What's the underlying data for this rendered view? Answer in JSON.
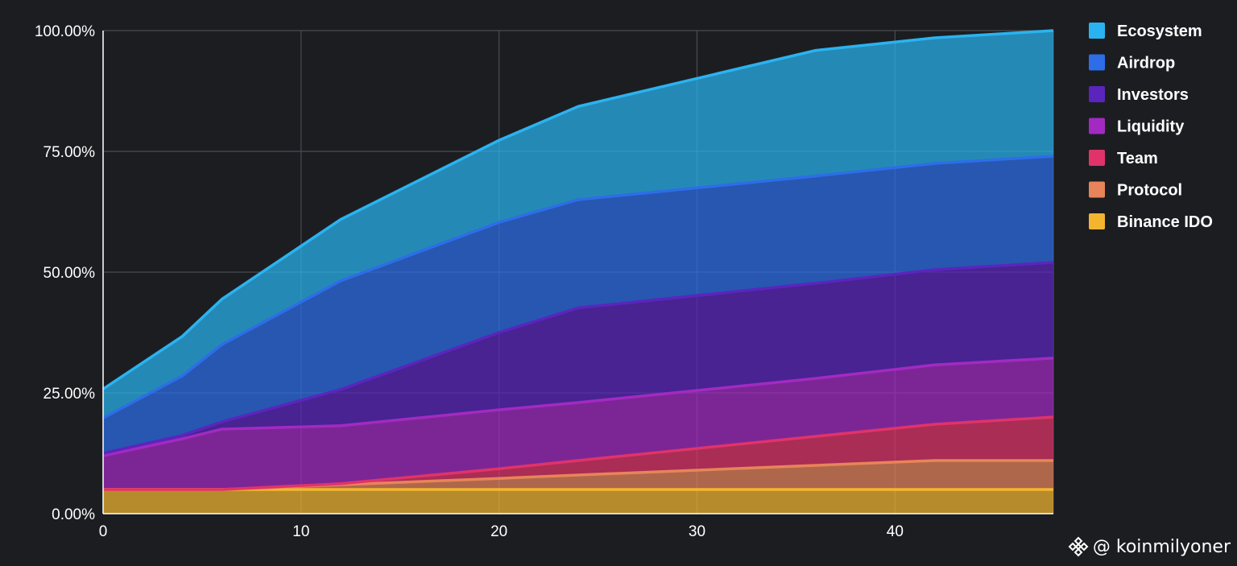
{
  "chart_data": {
    "type": "area",
    "stacked": true,
    "x": [
      0,
      4,
      6,
      12,
      20,
      24,
      36,
      42,
      48
    ],
    "xlim": [
      0,
      48
    ],
    "ylim": [
      0,
      100
    ],
    "xticks": [
      "0",
      "10",
      "20",
      "30",
      "40"
    ],
    "xtick_values": [
      0,
      10,
      20,
      30,
      40
    ],
    "yticks": [
      "0.00%",
      "25.00%",
      "50.00%",
      "75.00%",
      "100.00%"
    ],
    "ytick_values": [
      0,
      25,
      50,
      75,
      100
    ],
    "grid": true,
    "legend_position": "right",
    "series": [
      {
        "name": "Binance IDO",
        "color": "#f3b52f",
        "values": [
          5,
          5,
          5,
          5,
          5,
          5,
          5,
          5,
          5
        ]
      },
      {
        "name": "Protocol",
        "color": "#e8845a",
        "values": [
          0,
          0,
          0,
          1,
          2.3,
          3,
          5,
          6,
          6
        ]
      },
      {
        "name": "Team",
        "color": "#e0336a",
        "values": [
          0,
          0,
          0,
          0.2,
          2,
          3,
          6,
          7.5,
          9
        ]
      },
      {
        "name": "Liquidity",
        "color": "#a22ac2",
        "values": [
          7,
          10.5,
          12.5,
          12,
          12.2,
          12,
          12,
          12.3,
          12.2
        ]
      },
      {
        "name": "Investors",
        "color": "#5a25bd",
        "values": [
          0.5,
          0.7,
          1.5,
          7.5,
          16,
          19.6,
          19.7,
          19.7,
          19.8
        ]
      },
      {
        "name": "Airdrop",
        "color": "#2d6de8",
        "values": [
          7.3,
          12.3,
          16,
          22.5,
          22.8,
          22.4,
          22.2,
          22,
          22
        ]
      },
      {
        "name": "Ecosystem",
        "color": "#2ab3f0",
        "values": [
          6,
          8.2,
          9.4,
          12.7,
          17,
          19.3,
          26,
          26,
          26
        ]
      }
    ],
    "legend_order": [
      "Ecosystem",
      "Airdrop",
      "Investors",
      "Liquidity",
      "Team",
      "Protocol",
      "Binance IDO"
    ]
  },
  "watermark": {
    "text": "@ koinmilyoner",
    "icon": "binance-logo-icon"
  }
}
